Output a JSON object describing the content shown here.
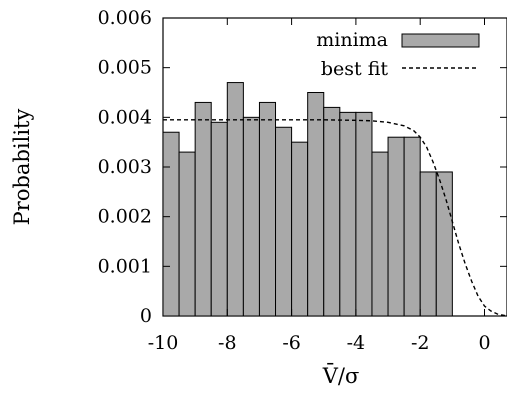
{
  "chart_data": {
    "type": "bar",
    "xlabel": "V̄/σ",
    "ylabel": "Probability",
    "xlim": [
      -10,
      0.7
    ],
    "ylim": [
      0,
      0.006
    ],
    "x_ticks": [
      "-10",
      "-8",
      "-6",
      "-4",
      "-2",
      "0"
    ],
    "x_tick_values": [
      -10,
      -8,
      -6,
      -4,
      -2,
      0
    ],
    "y_ticks": [
      "0",
      "0.001",
      "0.002",
      "0.003",
      "0.004",
      "0.005",
      "0.006"
    ],
    "y_tick_values": [
      0,
      0.001,
      0.002,
      0.003,
      0.004,
      0.005,
      0.006
    ],
    "bar_color": "#a9a9a9",
    "series": [
      {
        "name": "minima",
        "type": "bar",
        "bins": [
          {
            "x0": -10.0,
            "x1": -9.5,
            "value": 0.0037
          },
          {
            "x0": -9.5,
            "x1": -9.0,
            "value": 0.0033
          },
          {
            "x0": -9.0,
            "x1": -8.5,
            "value": 0.0043
          },
          {
            "x0": -8.5,
            "x1": -8.0,
            "value": 0.0039
          },
          {
            "x0": -8.0,
            "x1": -7.5,
            "value": 0.0047
          },
          {
            "x0": -7.5,
            "x1": -7.0,
            "value": 0.004
          },
          {
            "x0": -7.0,
            "x1": -6.5,
            "value": 0.0043
          },
          {
            "x0": -6.5,
            "x1": -6.0,
            "value": 0.0038
          },
          {
            "x0": -6.0,
            "x1": -5.5,
            "value": 0.0035
          },
          {
            "x0": -5.5,
            "x1": -5.0,
            "value": 0.0045
          },
          {
            "x0": -5.0,
            "x1": -4.5,
            "value": 0.0042
          },
          {
            "x0": -4.5,
            "x1": -4.0,
            "value": 0.0041
          },
          {
            "x0": -4.0,
            "x1": -3.5,
            "value": 0.0041
          },
          {
            "x0": -3.5,
            "x1": -3.0,
            "value": 0.0033
          },
          {
            "x0": -3.0,
            "x1": -2.5,
            "value": 0.0036
          },
          {
            "x0": -2.5,
            "x1": -2.0,
            "value": 0.0036
          },
          {
            "x0": -2.0,
            "x1": -1.5,
            "value": 0.0029
          },
          {
            "x0": -1.5,
            "x1": -1.0,
            "value": 0.0029
          }
        ]
      },
      {
        "name": "best fit",
        "type": "line",
        "style": "dashed",
        "x": [
          -10,
          -9,
          -8,
          -7,
          -6,
          -5,
          -4,
          -3.5,
          -3,
          -2.5,
          -2.2,
          -2,
          -1.8,
          -1.6,
          -1.4,
          -1.2,
          -1.0,
          -0.8,
          -0.6,
          -0.4,
          -0.2,
          0,
          0.2,
          0.4,
          0.7
        ],
        "y": [
          0.00395,
          0.00395,
          0.00395,
          0.00395,
          0.00395,
          0.00395,
          0.00394,
          0.00393,
          0.0039,
          0.00383,
          0.00373,
          0.0036,
          0.0034,
          0.0031,
          0.00275,
          0.00235,
          0.0019,
          0.00145,
          0.00105,
          0.0007,
          0.0004,
          0.0002,
          0.0001,
          4e-05,
          0.0
        ]
      }
    ],
    "legend": {
      "position": "top-right",
      "entries": [
        "minima",
        "best fit"
      ]
    }
  }
}
